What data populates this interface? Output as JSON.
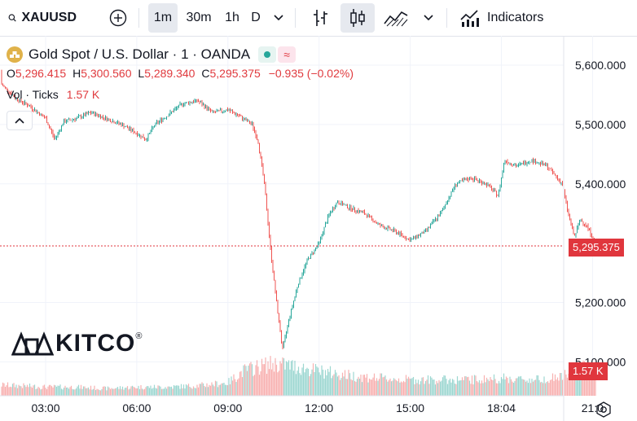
{
  "toolbar": {
    "symbol": "XAUUSD",
    "add_label": "+",
    "intervals": [
      "1m",
      "30m",
      "1h",
      "D"
    ],
    "active_interval": "1m",
    "indicators_label": "Indicators"
  },
  "legend": {
    "title": "Gold Spot / U.S. Dollar · 1 · OANDA",
    "open_label": "O",
    "open": "5,296.415",
    "high_label": "H",
    "high": "5,300.560",
    "low_label": "L",
    "low": "5,289.340",
    "close_label": "C",
    "close": "5,295.375",
    "change": "−0.935 (−0.02%)",
    "volume_label": "Vol · Ticks",
    "volume": "1.57 K"
  },
  "watermark": {
    "text": "KITCO",
    "mark": "®"
  },
  "colors": {
    "up": "#26a69a",
    "down": "#ef5350",
    "last_price": "#e0363d",
    "grid": "#f0f3fa",
    "accent": "#e0b24a"
  },
  "price_tag": "5,295.375",
  "volume_tag": "1.57 K",
  "chart_data": {
    "type": "line",
    "description_series": "candlestick",
    "title": "Gold Spot / U.S. Dollar · 1 · OANDA",
    "xlabel": "",
    "ylabel": "",
    "y_ticks": [
      "5,600.000",
      "5,500.000",
      "5,400.000",
      "5,200.000",
      "5,100.000"
    ],
    "y_tick_values": [
      5600,
      5500,
      5400,
      5200,
      5100
    ],
    "x_ticks": [
      "03:00",
      "06:00",
      "09:00",
      "12:00",
      "15:00",
      "18:04",
      "21:0"
    ],
    "x_tick_values": [
      3.0,
      6.0,
      9.0,
      12.0,
      15.0,
      18.0,
      21.0
    ],
    "ylim": [
      5100,
      5600
    ],
    "last_price": 5295.375,
    "series": [
      {
        "x": [
          1.0,
          1.5,
          2.0,
          2.5,
          3.0,
          3.3,
          3.6,
          4.0,
          4.5,
          5.0,
          5.5,
          6.0,
          6.3,
          6.6,
          7.0,
          7.5,
          8.0,
          8.5,
          9.0,
          9.5,
          9.8,
          10.0,
          10.2,
          10.4,
          10.6,
          10.8,
          11.0,
          11.3,
          11.6,
          12.0,
          12.3,
          12.6,
          13.0,
          13.5,
          14.0,
          14.5,
          15.0,
          15.5,
          16.0,
          16.5,
          17.0,
          17.5,
          17.9,
          18.1,
          18.5,
          19.0,
          19.5,
          20.0,
          20.2,
          20.4,
          20.6,
          20.8,
          21.0,
          21.1
        ],
        "values": [
          5590,
          5570,
          5545,
          5530,
          5510,
          5475,
          5505,
          5510,
          5520,
          5510,
          5500,
          5485,
          5475,
          5500,
          5515,
          5535,
          5540,
          5520,
          5525,
          5510,
          5500,
          5470,
          5400,
          5290,
          5200,
          5120,
          5170,
          5230,
          5270,
          5300,
          5345,
          5370,
          5360,
          5350,
          5330,
          5320,
          5305,
          5320,
          5350,
          5400,
          5410,
          5400,
          5380,
          5440,
          5430,
          5440,
          5430,
          5400,
          5350,
          5310,
          5340,
          5330,
          5310,
          5295
        ]
      }
    ],
    "volume": {
      "x": [
        1.0,
        2.0,
        3.0,
        4.0,
        5.0,
        6.0,
        7.0,
        8.0,
        9.0,
        9.5,
        10.0,
        10.5,
        11.0,
        11.5,
        12.0,
        13.0,
        14.0,
        15.0,
        16.0,
        17.0,
        18.0,
        19.0,
        20.0,
        20.5,
        21.0
      ],
      "values": [
        0.4,
        0.35,
        0.3,
        0.3,
        0.25,
        0.3,
        0.3,
        0.35,
        0.45,
        0.85,
        1.0,
        1.1,
        1.05,
        0.95,
        0.85,
        0.7,
        0.6,
        0.55,
        0.55,
        0.55,
        0.6,
        0.55,
        0.65,
        0.9,
        1.0
      ],
      "unit": "K ticks"
    }
  }
}
